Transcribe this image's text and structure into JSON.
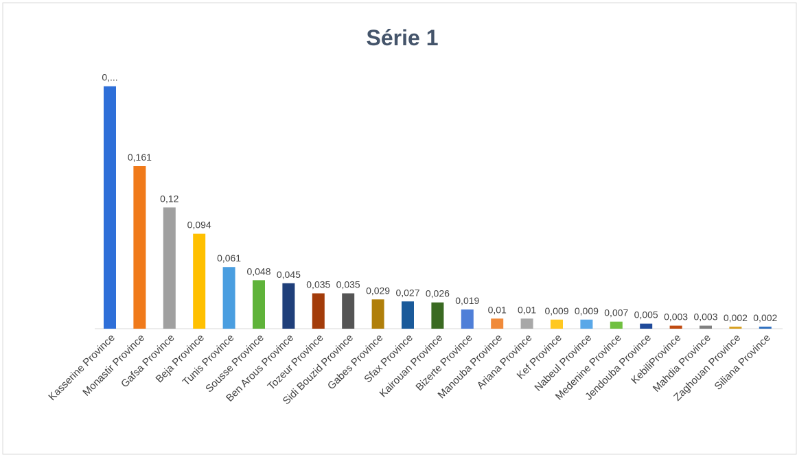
{
  "chart_data": {
    "type": "bar",
    "title": "Série 1",
    "categories": [
      "Kasserine Province",
      "Monastir Province",
      "Gafsa Province",
      "Beja Province",
      "Tunis Province",
      "Sousse Province",
      "Ben Arous Province",
      "Tozeur Province",
      "Sidi Bouzid Province",
      "Gabes Province",
      "Sfax Province",
      "Kairouan Province",
      "Bizerte Province",
      "Manouba Province",
      "Ariana Province",
      "Kef Province",
      "Nabeul Province",
      "Medenine Province",
      "Jendouba Province",
      "KebiliProvince",
      "Mahdia Province",
      "Zaghouan Province",
      "Siliana Province"
    ],
    "values": [
      0.24,
      0.161,
      0.12,
      0.094,
      0.061,
      0.048,
      0.045,
      0.035,
      0.035,
      0.029,
      0.027,
      0.026,
      0.019,
      0.01,
      0.01,
      0.009,
      0.009,
      0.007,
      0.005,
      0.003,
      0.003,
      0.002,
      0.002
    ],
    "value_labels": [
      "0,...",
      "0,161",
      "0,12",
      "0,094",
      "0,061",
      "0,048",
      "0,045",
      "0,035",
      "0,035",
      "0,029",
      "0,027",
      "0,026",
      "0,019",
      "0,01",
      "0,01",
      "0,009",
      "0,009",
      "0,007",
      "0,005",
      "0,003",
      "0,003",
      "0,002",
      "0,002"
    ],
    "colors": [
      "#2e6fd8",
      "#f07a1a",
      "#a0a0a0",
      "#ffc000",
      "#4a9ee0",
      "#5fb33a",
      "#1f3f7a",
      "#a33c0a",
      "#555555",
      "#b07f0a",
      "#1a5a9a",
      "#3a6a22",
      "#4f7fd8",
      "#f08a3a",
      "#a8a8a8",
      "#ffc820",
      "#5aa8e8",
      "#70c040",
      "#1f4a9a",
      "#c04a10",
      "#808080",
      "#d8a020",
      "#3070c0"
    ],
    "ylim": [
      0,
      0.25
    ]
  }
}
